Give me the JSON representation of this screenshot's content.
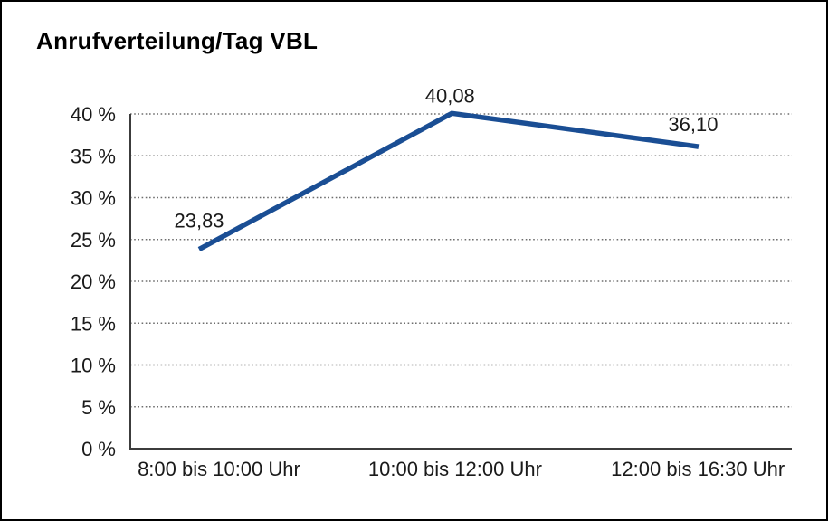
{
  "chart_data": {
    "type": "line",
    "title": "Anrufverteilung/Tag VBL",
    "categories": [
      "8:00 bis 10:00 Uhr",
      "10:00 bis 12:00 Uhr",
      "12:00 bis 16:30 Uhr"
    ],
    "values": [
      23.83,
      40.08,
      36.1
    ],
    "value_labels": [
      "23,83",
      "40,08",
      "36,10"
    ],
    "xlabel": "",
    "ylabel": "",
    "ylim": [
      0,
      40
    ],
    "ytick_values": [
      0,
      5,
      10,
      15,
      20,
      25,
      30,
      35,
      40
    ],
    "ytick_labels": [
      "0 %",
      "5 %",
      "10 %",
      "15 %",
      "20 %",
      "25 %",
      "30 %",
      "35 %",
      "40 %"
    ],
    "grid": "horizontal-dotted",
    "legend": "none",
    "line_color": "#1a4e94",
    "axis_color": "#3c3c3c",
    "grid_color": "#6e6e6e",
    "text_color": "#1a1a1a",
    "background": "#ffffff",
    "frame_border_color": "#000000"
  }
}
